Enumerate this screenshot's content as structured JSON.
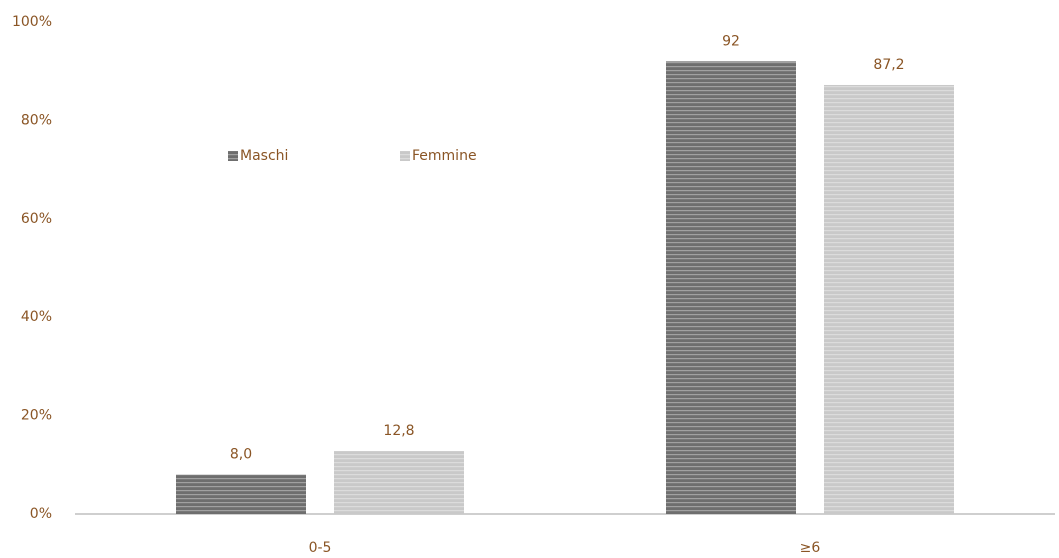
{
  "chart_data": {
    "type": "bar",
    "categories": [
      "0-5",
      "≥6"
    ],
    "series": [
      {
        "name": "Maschi",
        "color": "#6e6e6e",
        "values": [
          8.0,
          92
        ],
        "value_labels": [
          "8,0",
          "92"
        ]
      },
      {
        "name": "Femmine",
        "color": "#c9c9c9",
        "values": [
          12.8,
          87.2
        ],
        "value_labels": [
          "12,8",
          "87,2"
        ]
      }
    ],
    "ylim": [
      0,
      100
    ],
    "yticks": [
      {
        "value": 0,
        "label": "0%"
      },
      {
        "value": 20,
        "label": "20%"
      },
      {
        "value": 40,
        "label": "40%"
      },
      {
        "value": 60,
        "label": "60%"
      },
      {
        "value": 80,
        "label": "80%"
      },
      {
        "value": 100,
        "label": "100%"
      }
    ],
    "legend": "upper left",
    "grid": false
  }
}
